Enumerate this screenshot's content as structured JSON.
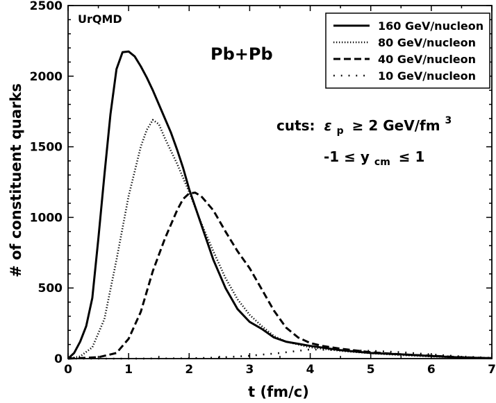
{
  "chart_data": {
    "type": "line",
    "xlabel": "t (fm/c)",
    "ylabel": "# of constituent quarks",
    "xlim": [
      0,
      7
    ],
    "ylim": [
      0,
      2500
    ],
    "xticks": [
      0,
      1,
      2,
      3,
      4,
      5,
      6,
      7
    ],
    "yticks": [
      0,
      500,
      1000,
      1500,
      2000,
      2500
    ],
    "grid": false,
    "legend_position": "top-right",
    "annotations": {
      "model": "UrQMD",
      "system": "Pb+Pb",
      "cuts_prefix": "cuts:",
      "cut1_symbol": "ε",
      "cut1_symbol_sub": "p",
      "cut1_relation": "≥ 2 GeV/fm",
      "cut1_exponent": "3",
      "cut2_lower": "-1 ≤ y",
      "cut2_sub": "cm",
      "cut2_upper": "≤ 1"
    },
    "series": [
      {
        "name": "160 GeV/nucleon",
        "style": "solid",
        "x": [
          0,
          0.1,
          0.2,
          0.3,
          0.4,
          0.5,
          0.6,
          0.7,
          0.8,
          0.9,
          1.0,
          1.1,
          1.2,
          1.3,
          1.4,
          1.5,
          1.6,
          1.7,
          1.8,
          1.9,
          2.0,
          2.2,
          2.4,
          2.6,
          2.8,
          3.0,
          3.2,
          3.4,
          3.6,
          3.8,
          4.0,
          4.5,
          5.0,
          5.5,
          6.0,
          6.5,
          7.0
        ],
        "y": [
          0,
          40,
          120,
          230,
          430,
          850,
          1300,
          1730,
          2050,
          2170,
          2175,
          2140,
          2070,
          1990,
          1900,
          1800,
          1700,
          1600,
          1480,
          1350,
          1200,
          950,
          700,
          500,
          350,
          260,
          210,
          150,
          120,
          105,
          90,
          60,
          40,
          30,
          18,
          8,
          3
        ]
      },
      {
        "name": "80 GeV/nucleon",
        "style": "dotted",
        "x": [
          0,
          0.2,
          0.4,
          0.6,
          0.8,
          1.0,
          1.2,
          1.3,
          1.4,
          1.5,
          1.6,
          1.8,
          2.0,
          2.2,
          2.4,
          2.6,
          2.8,
          3.0,
          3.2,
          3.4,
          3.6,
          3.8,
          4.0,
          4.5,
          5.0,
          5.5,
          6.0,
          6.5,
          7.0
        ],
        "y": [
          0,
          15,
          80,
          280,
          700,
          1150,
          1500,
          1620,
          1690,
          1660,
          1560,
          1380,
          1180,
          960,
          760,
          570,
          420,
          310,
          230,
          160,
          120,
          100,
          80,
          55,
          38,
          25,
          15,
          8,
          3
        ]
      },
      {
        "name": "40 GeV/nucleon",
        "style": "dashed",
        "x": [
          0,
          0.5,
          0.8,
          1.0,
          1.2,
          1.4,
          1.6,
          1.8,
          1.9,
          2.0,
          2.1,
          2.2,
          2.4,
          2.6,
          2.8,
          3.0,
          3.2,
          3.4,
          3.6,
          3.8,
          4.0,
          4.2,
          4.5,
          5.0,
          5.5,
          6.0,
          6.5,
          7.0
        ],
        "y": [
          0,
          10,
          40,
          140,
          330,
          620,
          850,
          1050,
          1130,
          1170,
          1175,
          1150,
          1050,
          900,
          760,
          640,
          490,
          340,
          220,
          150,
          110,
          90,
          70,
          45,
          30,
          20,
          10,
          3
        ]
      },
      {
        "name": "10 GeV/nucleon",
        "style": "sparse-dotted",
        "x": [
          0,
          1.0,
          2.0,
          2.5,
          3.0,
          3.5,
          4.0,
          4.5,
          5.0,
          5.5,
          6.0,
          6.5,
          7.0
        ],
        "y": [
          0,
          0,
          2,
          8,
          20,
          40,
          65,
          60,
          55,
          45,
          30,
          15,
          5
        ]
      }
    ]
  }
}
